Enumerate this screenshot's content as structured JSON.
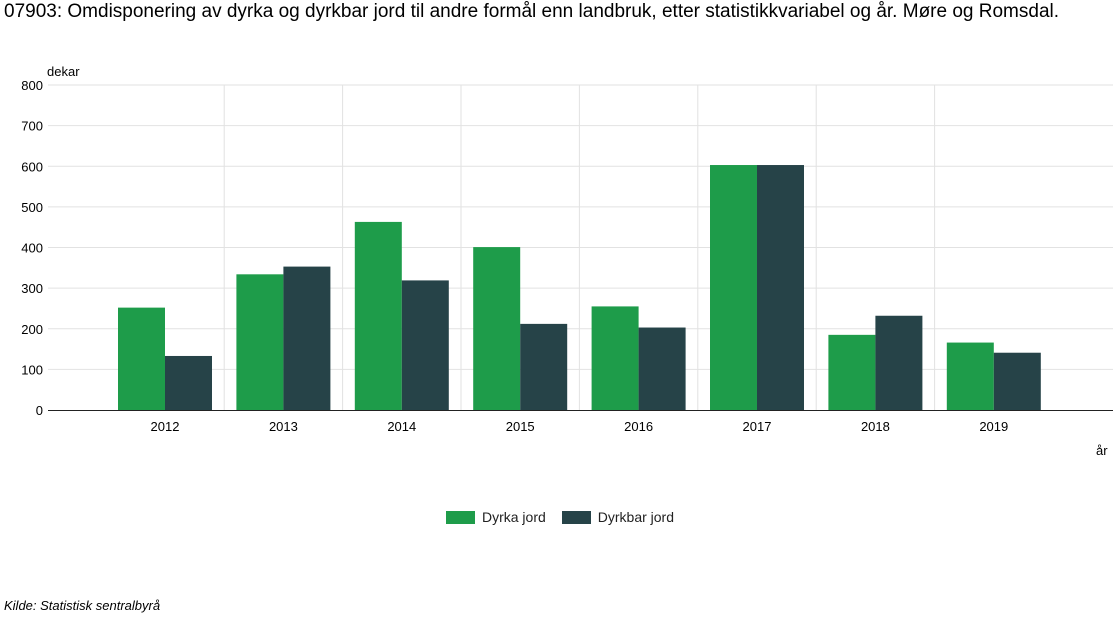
{
  "title": "07903: Omdisponering av dyrka og dyrkbar jord til andre formål enn landbruk, etter statistikkvariabel og år. Møre og Romsdal.",
  "source": "Kilde:  Statistisk sentralbyrå",
  "colors": {
    "series_1": "#1e9c4a",
    "series_2": "#264348",
    "grid": "#e2e2e2",
    "axis": "#222222"
  },
  "chart_data": {
    "type": "bar",
    "title": "07903: Omdisponering av dyrka og dyrkbar jord til andre formål enn landbruk, etter statistikkvariabel og år. Møre og Romsdal.",
    "xlabel": "år",
    "ylabel": "dekar",
    "categories": [
      "2012",
      "2013",
      "2014",
      "2015",
      "2016",
      "2017",
      "2018",
      "2019"
    ],
    "series": [
      {
        "name": "Dyrka jord",
        "values": [
          252,
          334,
          463,
          401,
          255,
          603,
          185,
          166
        ]
      },
      {
        "name": "Dyrkbar jord",
        "values": [
          133,
          353,
          319,
          212,
          203,
          603,
          232,
          141
        ]
      }
    ],
    "ylim": [
      0,
      800
    ],
    "yticks": [
      0,
      100,
      200,
      300,
      400,
      500,
      600,
      700,
      800
    ],
    "grid": true,
    "legend_position": "bottom-center"
  }
}
